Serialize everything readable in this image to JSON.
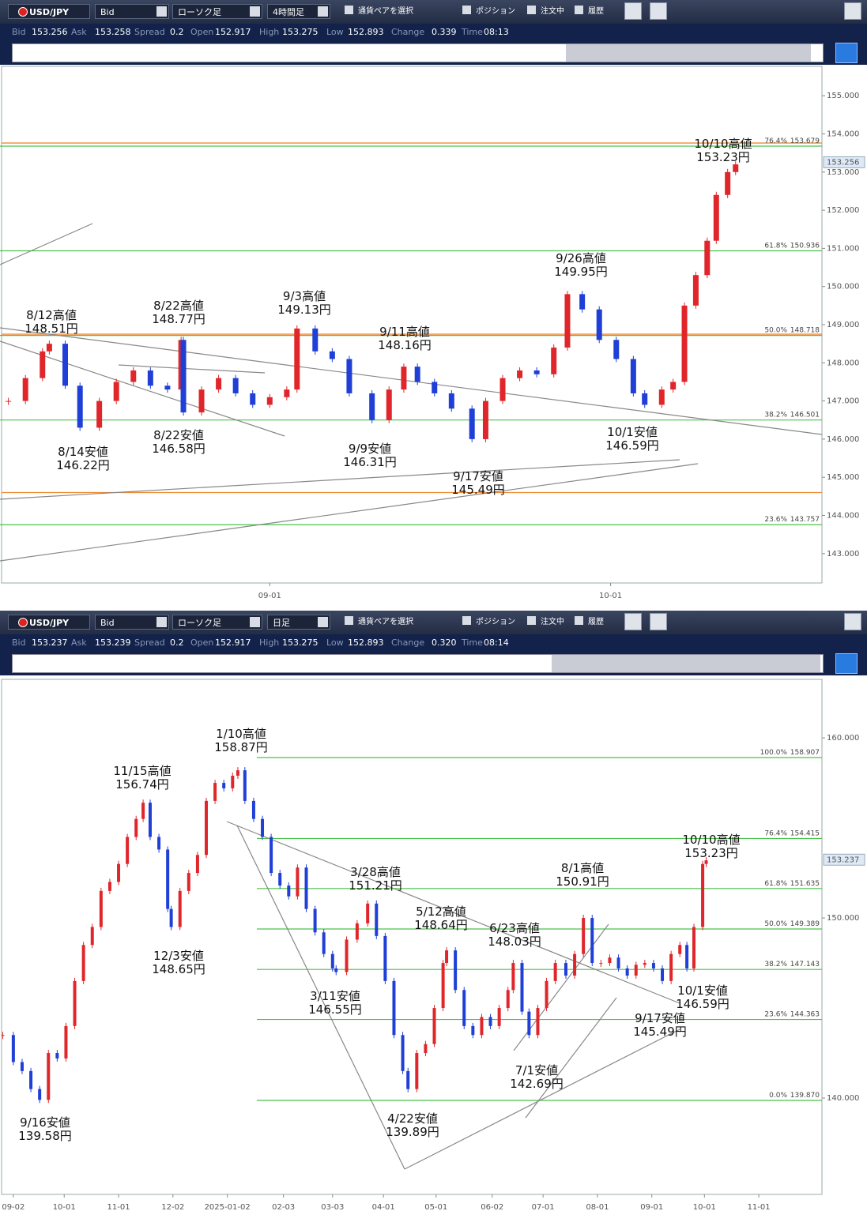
{
  "toolbars": [
    {
      "pair": "USD/JPY",
      "price_type": "Bid",
      "chart_type": "ローソク足",
      "timeframe": "4時間足",
      "select_pair": "通貨ペアを選択",
      "checkboxes": [
        "ポジション",
        "注文中",
        "履歴"
      ],
      "quote": {
        "labels": [
          "Bid",
          "Ask",
          "Spread",
          "Open",
          "High",
          "Low",
          "Change",
          "Time"
        ],
        "values": [
          "153.256",
          "153.258",
          "0.2",
          "152.917",
          "153.275",
          "152.893",
          "0.339",
          "08:13"
        ]
      }
    },
    {
      "pair": "USD/JPY",
      "price_type": "Bid",
      "chart_type": "ローソク足",
      "timeframe": "日足",
      "select_pair": "通貨ペアを選択",
      "checkboxes": [
        "ポジション",
        "注文中",
        "履歴"
      ],
      "quote": {
        "labels": [
          "Bid",
          "Ask",
          "Spread",
          "Open",
          "High",
          "Low",
          "Change",
          "Time"
        ],
        "values": [
          "153.237",
          "153.239",
          "0.2",
          "152.917",
          "153.275",
          "152.893",
          "0.320",
          "08:14"
        ]
      }
    }
  ],
  "chart_data": [
    {
      "type": "candlestick",
      "up_color": "#e0262b",
      "down_color": "#1f3fd6",
      "x": [
        -23,
        -21.5,
        -20,
        -19.4,
        -18,
        -16.7,
        -15,
        -13.5,
        -12,
        -10.5,
        -9,
        -7.8,
        -7.6,
        -6,
        -4.5,
        -3,
        -1.5,
        0,
        1.5,
        2.4,
        4,
        5.5,
        7,
        9,
        10.5,
        11.8,
        13,
        14.5,
        16,
        17.8,
        19,
        20.5,
        22,
        23.5,
        25,
        26.2,
        27.5,
        29,
        30.5,
        32,
        33,
        34.5,
        35.5,
        36.5,
        37.5,
        38.5,
        39.3,
        40.3,
        41
      ],
      "values": [
        147.0,
        147.6,
        148.3,
        148.5,
        147.4,
        146.3,
        147.0,
        147.5,
        147.8,
        147.4,
        147.3,
        148.6,
        146.7,
        147.3,
        147.6,
        147.2,
        146.9,
        147.1,
        147.3,
        148.9,
        148.3,
        148.1,
        147.2,
        146.5,
        147.3,
        147.9,
        147.5,
        147.2,
        146.8,
        146.0,
        147.0,
        147.6,
        147.8,
        147.7,
        148.4,
        149.8,
        149.4,
        148.6,
        148.1,
        147.2,
        146.9,
        147.3,
        147.5,
        149.5,
        150.3,
        151.2,
        152.4,
        153.0,
        153.2
      ],
      "xlim": [
        -23.6,
        48.6
      ],
      "xticks": [
        {
          "value": 0,
          "label": "09-01"
        },
        {
          "value": 30,
          "label": "10-01"
        }
      ],
      "ylim": [
        142.23,
        155.77
      ],
      "yticks": [
        {
          "value": 143,
          "label": "143.000"
        },
        {
          "value": 144,
          "label": "144.000"
        },
        {
          "value": 145,
          "label": "145.000"
        },
        {
          "value": 146,
          "label": "146.000"
        },
        {
          "value": 147,
          "label": "147.000"
        },
        {
          "value": 148,
          "label": "148.000"
        },
        {
          "value": 149,
          "label": "149.000"
        },
        {
          "value": 150,
          "label": "150.000"
        },
        {
          "value": 151,
          "label": "151.000"
        },
        {
          "value": 152,
          "label": "152.000"
        },
        {
          "value": 153,
          "label": "153.000"
        },
        {
          "value": 154,
          "label": "154.000"
        },
        {
          "value": 155,
          "label": "155.000"
        }
      ],
      "last": 153.256,
      "fib_levels": {
        "color": "#4cc24c",
        "ratios": [
          "76.4%",
          "61.8%",
          "50.0%",
          "38.2%",
          "23.6%"
        ],
        "values": [
          153.679,
          150.936,
          148.718,
          146.501,
          143.757
        ],
        "value_labels": [
          "153.679",
          "150.936",
          "148.718",
          "146.501",
          "143.757"
        ]
      },
      "lines": {
        "color": "#f08a30",
        "values": [
          153.76,
          148.75,
          144.6
        ]
      },
      "annotations": [
        {
          "label": "8/12高値",
          "price": "148.51円"
        },
        {
          "label": "8/14安値",
          "price": "146.22円"
        },
        {
          "label": "8/22高値",
          "price": "148.77円"
        },
        {
          "label": "8/22安値",
          "price": "146.58円"
        },
        {
          "label": "9/3高値",
          "price": "149.13円"
        },
        {
          "label": "9/9安値",
          "price": "146.31円"
        },
        {
          "label": "9/11高値",
          "price": "148.16円"
        },
        {
          "label": "9/17安値",
          "price": "145.49円"
        },
        {
          "label": "9/26高値",
          "price": "149.95円"
        },
        {
          "label": "10/1安値",
          "price": "146.59円"
        },
        {
          "label": "10/10高値",
          "price": "153.23円"
        }
      ]
    },
    {
      "type": "candlestick",
      "up_color": "#e0262b",
      "down_color": "#1f3fd6",
      "x": [
        -6,
        0,
        5,
        10,
        15,
        20,
        25,
        30,
        35,
        40,
        45,
        50,
        55,
        60,
        65,
        70,
        74,
        78,
        83,
        88,
        90,
        95,
        100,
        105,
        110,
        115,
        120,
        125,
        128,
        132,
        137,
        142,
        147,
        152,
        157,
        162,
        167,
        172,
        177,
        182,
        184,
        190,
        196,
        202,
        207,
        212,
        217,
        222,
        225,
        230,
        235,
        240,
        245,
        247,
        252,
        257,
        262,
        267,
        272,
        277,
        282,
        285,
        290,
        294,
        299,
        304,
        309,
        315,
        320,
        325,
        330,
        335,
        340,
        345,
        350,
        355,
        360,
        365,
        370,
        375,
        380,
        384,
        388,
        393,
        395
      ],
      "values": [
        143.5,
        142.0,
        141.5,
        140.5,
        139.9,
        142.5,
        142.2,
        144.0,
        146.5,
        148.5,
        149.5,
        151.5,
        152.0,
        153.0,
        154.5,
        155.5,
        156.4,
        154.5,
        153.8,
        150.5,
        149.5,
        151.5,
        152.5,
        153.5,
        156.5,
        157.5,
        157.2,
        157.9,
        158.2,
        156.5,
        155.5,
        154.5,
        152.5,
        151.8,
        151.2,
        152.8,
        150.5,
        149.2,
        148.0,
        147.2,
        147.0,
        148.8,
        149.7,
        150.8,
        149.0,
        146.5,
        143.5,
        141.5,
        140.5,
        142.5,
        143.0,
        145.0,
        147.5,
        148.2,
        146.0,
        144.0,
        143.5,
        144.5,
        144.0,
        145.0,
        146.0,
        147.5,
        144.8,
        143.5,
        145.0,
        146.5,
        147.5,
        146.8,
        148.0,
        150.0,
        147.5,
        147.5,
        147.8,
        147.2,
        146.8,
        147.4,
        147.5,
        147.2,
        146.5,
        148.0,
        148.5,
        147.2,
        149.5,
        153.0,
        153.2
      ],
      "xlim": [
        -6.7,
        461
      ],
      "xticks": [
        {
          "value": 0,
          "label": "09-02"
        },
        {
          "value": 29,
          "label": "10-01"
        },
        {
          "value": 60,
          "label": "11-01"
        },
        {
          "value": 91,
          "label": "12-02"
        },
        {
          "value": 122,
          "label": "2025-01-02"
        },
        {
          "value": 154,
          "label": "02-03"
        },
        {
          "value": 182,
          "label": "03-03"
        },
        {
          "value": 211,
          "label": "04-01"
        },
        {
          "value": 241,
          "label": "05-01"
        },
        {
          "value": 273,
          "label": "06-02"
        },
        {
          "value": 302,
          "label": "07-01"
        },
        {
          "value": 333,
          "label": "08-01"
        },
        {
          "value": 364,
          "label": "09-01"
        },
        {
          "value": 394,
          "label": "10-01"
        },
        {
          "value": 425,
          "label": "11-01"
        }
      ],
      "ylim": [
        134.65,
        163.25
      ],
      "yticks": [
        {
          "value": 140,
          "label": "140.000"
        },
        {
          "value": 150,
          "label": "150.000"
        },
        {
          "value": 160,
          "label": "160.000"
        }
      ],
      "last": 153.237,
      "fib_levels": {
        "color": "#4cc24c",
        "ratios": [
          "100.0%",
          "76.4%",
          "61.8%",
          "50.0%",
          "38.2%",
          "23.6%",
          "0.0%"
        ],
        "values": [
          158.907,
          154.415,
          151.635,
          149.389,
          147.143,
          144.363,
          139.87
        ],
        "value_labels": [
          "158.907",
          "154.415",
          "151.635",
          "149.389",
          "147.143",
          "144.363",
          "139.870"
        ]
      },
      "annotations": [
        {
          "label": "9/16安値",
          "price": "139.58円"
        },
        {
          "label": "11/15高値",
          "price": "156.74円"
        },
        {
          "label": "12/3安値",
          "price": "148.65円"
        },
        {
          "label": "1/10高値",
          "price": "158.87円"
        },
        {
          "label": "3/11安値",
          "price": "146.55円"
        },
        {
          "label": "3/28高値",
          "price": "151.21円"
        },
        {
          "label": "4/22安値",
          "price": "139.89円"
        },
        {
          "label": "5/12高値",
          "price": "148.64円"
        },
        {
          "label": "6/23高値",
          "price": "148.03円"
        },
        {
          "label": "7/1安値",
          "price": "142.69円"
        },
        {
          "label": "8/1高値",
          "price": "150.91円"
        },
        {
          "label": "9/17安値",
          "price": "145.49円"
        },
        {
          "label": "10/1安値",
          "price": "146.59円"
        },
        {
          "label": "10/10高値",
          "price": "153.23円"
        }
      ]
    }
  ]
}
